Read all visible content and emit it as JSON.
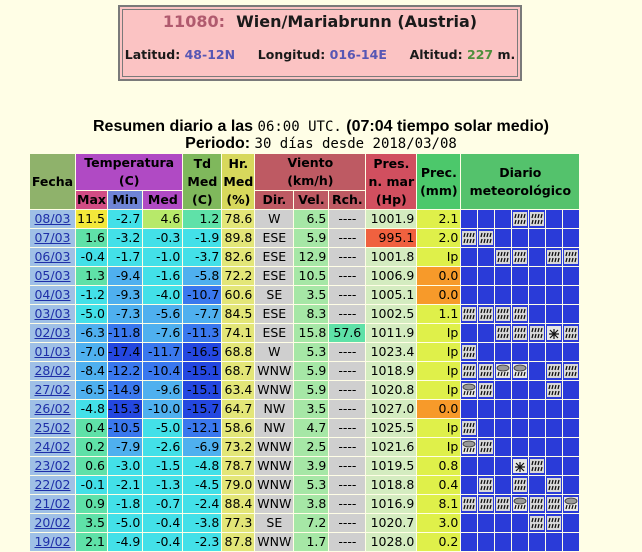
{
  "station": {
    "code": "11080:",
    "name": "Wien/Mariabrunn (Austria)",
    "lat_label": "Latitud:",
    "lat_value": "48-12N",
    "lon_label": "Longitud:",
    "lon_value": "016-14E",
    "alt_label": "Altitud:",
    "alt_value": "227",
    "alt_unit": "m."
  },
  "summary": {
    "line1_a": "Resumen diario a las",
    "line1_time": "06:00 UTC.",
    "line1_b": "(07:04 tiempo solar medio)",
    "line2_a": "Periodo:",
    "line2_period": "30 días desde 2018/03/08"
  },
  "headers": {
    "fecha": "Fecha",
    "temperatura": "Temperatura",
    "temp_unit": "(C)",
    "max": "Max",
    "min": "Min",
    "med": "Med",
    "td1": "Td",
    "td2": "Med",
    "td3": "(C)",
    "hr1": "Hr.",
    "hr2": "Med",
    "hr3": "(%)",
    "viento": "Viento",
    "viento_unit": "(km/h)",
    "dir": "Dir.",
    "vel": "Vel.",
    "rch": "Rch.",
    "pres1": "Pres.",
    "pres2": "n. mar",
    "pres3": "(Hp)",
    "prec1": "Prec.",
    "prec2": "(mm)",
    "diario1": "Diario",
    "diario2": "meteorológico"
  },
  "rows": [
    {
      "date": "08/03",
      "max": "11.5",
      "min": "-2.7",
      "med": "4.6",
      "td": "1.2",
      "hr": "78.6",
      "dir": "W",
      "vel": "6.5",
      "rch": "----",
      "pres": "1001.9",
      "prec": "2.1",
      "diary": [
        "",
        "",
        "",
        "rain",
        "rain",
        "",
        ""
      ]
    },
    {
      "date": "07/03",
      "max": "1.6",
      "min": "-3.2",
      "med": "-0.3",
      "td": "-1.9",
      "hr": "89.8",
      "dir": "ESE",
      "vel": "5.9",
      "rch": "----",
      "pres": "995.1",
      "prec": "2.0",
      "diary": [
        "rain",
        "rain",
        "",
        "",
        "",
        "",
        ""
      ]
    },
    {
      "date": "06/03",
      "max": "-0.4",
      "min": "-1.7",
      "med": "-1.0",
      "td": "-3.7",
      "hr": "82.6",
      "dir": "ESE",
      "vel": "12.9",
      "rch": "----",
      "pres": "1001.8",
      "prec": "Ip",
      "diary": [
        "",
        "",
        "rain",
        "rain",
        "",
        "rain",
        "rain"
      ]
    },
    {
      "date": "05/03",
      "max": "1.3",
      "min": "-9.4",
      "med": "-1.6",
      "td": "-5.8",
      "hr": "72.2",
      "dir": "ESE",
      "vel": "10.5",
      "rch": "----",
      "pres": "1006.9",
      "prec": "0.0",
      "diary": [
        "",
        "",
        "",
        "",
        "",
        "",
        ""
      ]
    },
    {
      "date": "04/03",
      "max": "-1.2",
      "min": "-9.3",
      "med": "-4.0",
      "td": "-10.7",
      "hr": "60.6",
      "dir": "SE",
      "vel": "3.5",
      "rch": "----",
      "pres": "1005.1",
      "prec": "0.0",
      "diary": [
        "",
        "",
        "",
        "",
        "",
        "",
        ""
      ]
    },
    {
      "date": "03/03",
      "max": "-5.0",
      "min": "-7.3",
      "med": "-5.6",
      "td": "-7.7",
      "hr": "84.5",
      "dir": "ESE",
      "vel": "8.3",
      "rch": "----",
      "pres": "1002.5",
      "prec": "1.1",
      "diary": [
        "rain",
        "rain",
        "rain",
        "rain",
        "",
        "",
        ""
      ]
    },
    {
      "date": "02/03",
      "max": "-6.3",
      "min": "-11.8",
      "med": "-7.6",
      "td": "-11.3",
      "hr": "74.1",
      "dir": "ESE",
      "vel": "15.8",
      "rch": "57.6",
      "pres": "1011.9",
      "prec": "Ip",
      "diary": [
        "",
        "",
        "rain",
        "rain",
        "rain",
        "snow",
        "rain"
      ]
    },
    {
      "date": "01/03",
      "max": "-7.0",
      "min": "-17.4",
      "med": "-11.7",
      "td": "-16.5",
      "hr": "68.8",
      "dir": "W",
      "vel": "5.3",
      "rch": "----",
      "pres": "1023.4",
      "prec": "Ip",
      "diary": [
        "rain",
        "",
        "",
        "",
        "",
        "",
        ""
      ]
    },
    {
      "date": "28/02",
      "max": "-8.4",
      "min": "-12.2",
      "med": "-10.4",
      "td": "-15.1",
      "hr": "68.7",
      "dir": "WNW",
      "vel": "5.9",
      "rch": "----",
      "pres": "1018.9",
      "prec": "Ip",
      "diary": [
        "rain",
        "rain",
        "shower",
        "shower",
        "",
        "rain",
        "rain"
      ]
    },
    {
      "date": "27/02",
      "max": "-6.5",
      "min": "-14.9",
      "med": "-9.6",
      "td": "-15.1",
      "hr": "63.4",
      "dir": "WNW",
      "vel": "5.9",
      "rch": "----",
      "pres": "1020.8",
      "prec": "Ip",
      "diary": [
        "shower",
        "rain",
        "",
        "",
        "",
        "rain",
        ""
      ]
    },
    {
      "date": "26/02",
      "max": "-4.8",
      "min": "-15.3",
      "med": "-10.0",
      "td": "-15.7",
      "hr": "64.7",
      "dir": "NW",
      "vel": "3.5",
      "rch": "----",
      "pres": "1027.0",
      "prec": "0.0",
      "diary": [
        "",
        "",
        "",
        "",
        "",
        "",
        ""
      ]
    },
    {
      "date": "25/02",
      "max": "0.4",
      "min": "-10.5",
      "med": "-5.0",
      "td": "-12.1",
      "hr": "58.6",
      "dir": "NW",
      "vel": "4.7",
      "rch": "----",
      "pres": "1025.5",
      "prec": "Ip",
      "diary": [
        "rain",
        "",
        "",
        "",
        "",
        "",
        ""
      ]
    },
    {
      "date": "24/02",
      "max": "0.2",
      "min": "-7.9",
      "med": "-2.6",
      "td": "-6.9",
      "hr": "73.2",
      "dir": "WNW",
      "vel": "2.5",
      "rch": "----",
      "pres": "1021.6",
      "prec": "Ip",
      "diary": [
        "shower",
        "rain",
        "",
        "",
        "",
        "",
        ""
      ]
    },
    {
      "date": "23/02",
      "max": "0.6",
      "min": "-3.0",
      "med": "-1.5",
      "td": "-4.8",
      "hr": "78.7",
      "dir": "WNW",
      "vel": "3.9",
      "rch": "----",
      "pres": "1019.5",
      "prec": "0.8",
      "diary": [
        "",
        "",
        "",
        "snow",
        "rain",
        "",
        ""
      ]
    },
    {
      "date": "22/02",
      "max": "-0.1",
      "min": "-2.1",
      "med": "-1.3",
      "td": "-4.5",
      "hr": "79.0",
      "dir": "WNW",
      "vel": "5.3",
      "rch": "----",
      "pres": "1018.8",
      "prec": "0.4",
      "diary": [
        "",
        "rain",
        "",
        "rain",
        "",
        "rain",
        ""
      ]
    },
    {
      "date": "21/02",
      "max": "0.9",
      "min": "-1.8",
      "med": "-0.7",
      "td": "-2.4",
      "hr": "88.4",
      "dir": "WNW",
      "vel": "3.8",
      "rch": "----",
      "pres": "1016.9",
      "prec": "8.1",
      "diary": [
        "rain",
        "rain",
        "rain",
        "shower",
        "rain",
        "rain",
        "shower"
      ]
    },
    {
      "date": "20/02",
      "max": "3.5",
      "min": "-5.0",
      "med": "-0.4",
      "td": "-3.8",
      "hr": "77.3",
      "dir": "SE",
      "vel": "7.2",
      "rch": "----",
      "pres": "1020.7",
      "prec": "3.0",
      "diary": [
        "",
        "",
        "",
        "",
        "rain",
        "rain",
        ""
      ]
    },
    {
      "date": "19/02",
      "max": "2.1",
      "min": "-4.9",
      "med": "-0.4",
      "td": "-2.3",
      "hr": "87.8",
      "dir": "WNW",
      "vel": "1.7",
      "rch": "----",
      "pres": "1028.0",
      "prec": "0.2",
      "diary": [
        "",
        "",
        "",
        "",
        "",
        "",
        ""
      ]
    }
  ],
  "colors": {
    "diary_bg": "#2a3bd8",
    "prec_zero": "#f79a2a",
    "prec_value": "#dff04a",
    "pres_low": "#f0613f"
  }
}
